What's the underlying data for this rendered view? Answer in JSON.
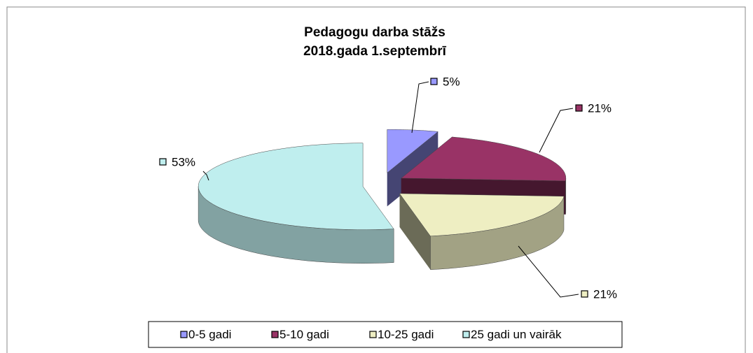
{
  "chart_data": {
    "type": "pie3d",
    "title": [
      "Pedagogu darba stāžs",
      "2018.gada 1.septembrī"
    ],
    "categories": [
      "0-5 gadi",
      "5-10 gadi",
      "10-25 gadi",
      "25 gadi un vairāk"
    ],
    "values": [
      5,
      21,
      21,
      53
    ],
    "value_labels": [
      "5%",
      "21%",
      "21%",
      "53%"
    ],
    "colors": [
      "#9999ff",
      "#993366",
      "#eeeec2",
      "#bfeeee"
    ],
    "legend": "bottom"
  }
}
